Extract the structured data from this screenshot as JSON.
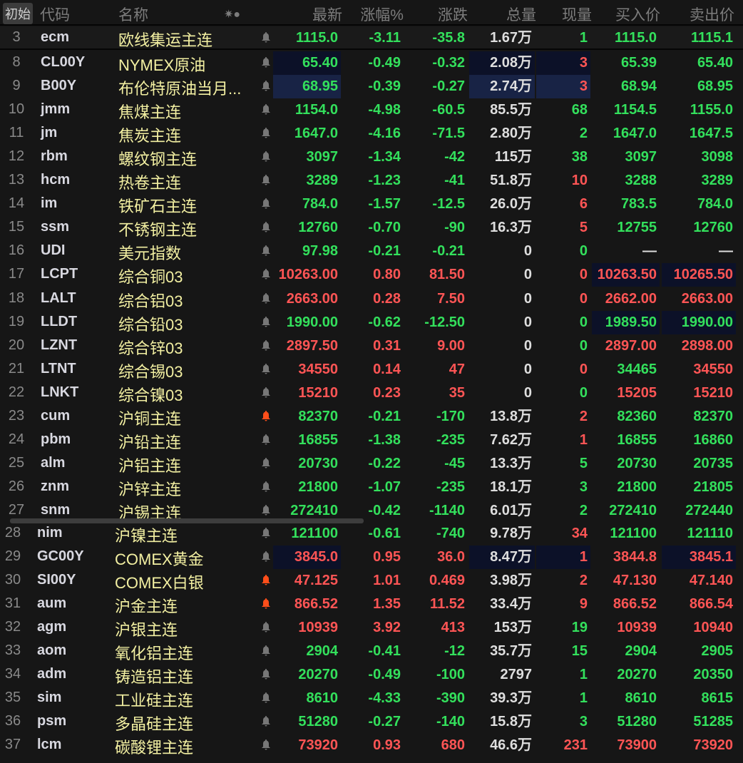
{
  "header": {
    "init_button": "初始",
    "cols": [
      "代码",
      "名称",
      "✷●",
      "最新",
      "涨幅%",
      "涨跌",
      "总量",
      "现量",
      "买入价",
      "卖出价"
    ]
  },
  "colors": {
    "up": "#ff5555",
    "down": "#33e05c",
    "neutral": "#dedede",
    "name": "#f3f0a2",
    "alert_bell": "#ff4e1a"
  },
  "rows": [
    {
      "n": "3",
      "code": "ecm",
      "name": "欧线集运主连",
      "last": "1115.0",
      "pct": "-3.11",
      "chg": "-35.8",
      "vol": "1.67万",
      "cur": "1",
      "bid": "1115.0",
      "ask": "1115.1",
      "c": "gggggg",
      "bell": "gray"
    },
    {
      "n": "8",
      "code": "CL00Y",
      "name": "NYMEX原油",
      "last": "65.40",
      "pct": "-0.49",
      "chg": "-0.32",
      "vol": "2.08万",
      "cur": "3",
      "bid": "65.39",
      "ask": "65.40",
      "c": "gggrgg",
      "bell": "gray",
      "hl": {
        "last": 1,
        "vol": 1
      }
    },
    {
      "n": "9",
      "code": "B00Y",
      "name": "布伦特原油当月...",
      "last": "68.95",
      "pct": "-0.39",
      "chg": "-0.27",
      "vol": "2.74万",
      "cur": "3",
      "bid": "68.94",
      "ask": "68.95",
      "c": "gggrgg",
      "bell": "gray",
      "hl": {
        "last": 2,
        "vol": 2
      }
    },
    {
      "n": "10",
      "code": "jmm",
      "name": "焦煤主连",
      "last": "1154.0",
      "pct": "-4.98",
      "chg": "-60.5",
      "vol": "85.5万",
      "cur": "68",
      "bid": "1154.5",
      "ask": "1155.0",
      "c": "gggggg",
      "bell": "gray"
    },
    {
      "n": "11",
      "code": "jm",
      "name": "焦炭主连",
      "last": "1647.0",
      "pct": "-4.16",
      "chg": "-71.5",
      "vol": "2.80万",
      "cur": "2",
      "bid": "1647.0",
      "ask": "1647.5",
      "c": "gggggg",
      "bell": "gray"
    },
    {
      "n": "12",
      "code": "rbm",
      "name": "螺纹钢主连",
      "last": "3097",
      "pct": "-1.34",
      "chg": "-42",
      "vol": "115万",
      "cur": "38",
      "bid": "3097",
      "ask": "3098",
      "c": "gggggg",
      "bell": "gray"
    },
    {
      "n": "13",
      "code": "hcm",
      "name": "热卷主连",
      "last": "3289",
      "pct": "-1.23",
      "chg": "-41",
      "vol": "51.8万",
      "cur": "10",
      "bid": "3288",
      "ask": "3289",
      "c": "gggrgg",
      "bell": "gray"
    },
    {
      "n": "14",
      "code": "im",
      "name": "铁矿石主连",
      "last": "784.0",
      "pct": "-1.57",
      "chg": "-12.5",
      "vol": "26.0万",
      "cur": "6",
      "bid": "783.5",
      "ask": "784.0",
      "c": "gggrgg",
      "bell": "gray"
    },
    {
      "n": "15",
      "code": "ssm",
      "name": "不锈钢主连",
      "last": "12760",
      "pct": "-0.70",
      "chg": "-90",
      "vol": "16.3万",
      "cur": "5",
      "bid": "12755",
      "ask": "12760",
      "c": "gggrgg",
      "bell": "gray"
    },
    {
      "n": "16",
      "code": "UDI",
      "name": "美元指数",
      "last": "97.98",
      "pct": "-0.21",
      "chg": "-0.21",
      "vol": "0",
      "cur": "0",
      "bid": "—",
      "ask": "—",
      "c": "ggggww",
      "bell": "gray"
    },
    {
      "n": "17",
      "code": "LCPT",
      "name": "综合铜03",
      "last": "10263.00",
      "pct": "0.80",
      "chg": "81.50",
      "vol": "0",
      "cur": "0",
      "bid": "10263.50",
      "ask": "10265.50",
      "c": "rrrrrr",
      "bell": "gray",
      "hl": {
        "bid": 1,
        "ask": 1
      }
    },
    {
      "n": "18",
      "code": "LALT",
      "name": "综合铝03",
      "last": "2663.00",
      "pct": "0.28",
      "chg": "7.50",
      "vol": "0",
      "cur": "0",
      "bid": "2662.00",
      "ask": "2663.00",
      "c": "rrrrrr",
      "bell": "gray"
    },
    {
      "n": "19",
      "code": "LLDT",
      "name": "综合铅03",
      "last": "1990.00",
      "pct": "-0.62",
      "chg": "-12.50",
      "vol": "0",
      "cur": "0",
      "bid": "1989.50",
      "ask": "1990.00",
      "c": "gggggg",
      "bell": "gray",
      "hl": {
        "bid": 1,
        "ask": 1
      }
    },
    {
      "n": "20",
      "code": "LZNT",
      "name": "综合锌03",
      "last": "2897.50",
      "pct": "0.31",
      "chg": "9.00",
      "vol": "0",
      "cur": "0",
      "bid": "2897.00",
      "ask": "2898.00",
      "c": "rrrgrr",
      "bell": "gray"
    },
    {
      "n": "21",
      "code": "LTNT",
      "name": "综合锡03",
      "last": "34550",
      "pct": "0.14",
      "chg": "47",
      "vol": "0",
      "cur": "0",
      "bid": "34465",
      "ask": "34550",
      "c": "rrrrgr",
      "bell": "gray"
    },
    {
      "n": "22",
      "code": "LNKT",
      "name": "综合镍03",
      "last": "15210",
      "pct": "0.23",
      "chg": "35",
      "vol": "0",
      "cur": "0",
      "bid": "15205",
      "ask": "15210",
      "c": "rrrgrr",
      "bell": "gray"
    },
    {
      "n": "23",
      "code": "cum",
      "name": "沪铜主连",
      "last": "82370",
      "pct": "-0.21",
      "chg": "-170",
      "vol": "13.8万",
      "cur": "2",
      "bid": "82360",
      "ask": "82370",
      "c": "gggrgg",
      "bell": "alert"
    },
    {
      "n": "24",
      "code": "pbm",
      "name": "沪铅主连",
      "last": "16855",
      "pct": "-1.38",
      "chg": "-235",
      "vol": "7.62万",
      "cur": "1",
      "bid": "16855",
      "ask": "16860",
      "c": "gggrgg",
      "bell": "gray"
    },
    {
      "n": "25",
      "code": "alm",
      "name": "沪铝主连",
      "last": "20730",
      "pct": "-0.22",
      "chg": "-45",
      "vol": "13.3万",
      "cur": "5",
      "bid": "20730",
      "ask": "20735",
      "c": "gggggg",
      "bell": "gray"
    },
    {
      "n": "26",
      "code": "znm",
      "name": "沪锌主连",
      "last": "21800",
      "pct": "-1.07",
      "chg": "-235",
      "vol": "18.1万",
      "cur": "3",
      "bid": "21800",
      "ask": "21805",
      "c": "gggggg",
      "bell": "gray"
    },
    {
      "n": "27",
      "code": "snm",
      "name": "沪锡主连",
      "last": "272410",
      "pct": "-0.42",
      "chg": "-1140",
      "vol": "6.01万",
      "cur": "2",
      "bid": "272410",
      "ask": "272440",
      "c": "gggggg",
      "bell": "gray"
    },
    {
      "n": "28",
      "code": "nim",
      "name": "沪镍主连",
      "last": "121100",
      "pct": "-0.61",
      "chg": "-740",
      "vol": "9.78万",
      "cur": "34",
      "bid": "121100",
      "ask": "121110",
      "c": "gggrgg",
      "bell": "gray"
    },
    {
      "n": "29",
      "code": "GC00Y",
      "name": "COMEX黄金",
      "last": "3845.0",
      "pct": "0.95",
      "chg": "36.0",
      "vol": "8.47万",
      "cur": "1",
      "bid": "3844.8",
      "ask": "3845.1",
      "c": "rrrrrr",
      "bell": "gray",
      "hl": {
        "last": 1,
        "vol": 1,
        "ask": 1
      }
    },
    {
      "n": "30",
      "code": "SI00Y",
      "name": "COMEX白银",
      "last": "47.125",
      "pct": "1.01",
      "chg": "0.469",
      "vol": "3.98万",
      "cur": "2",
      "bid": "47.130",
      "ask": "47.140",
      "c": "rrrrrr",
      "bell": "alert"
    },
    {
      "n": "31",
      "code": "aum",
      "name": "沪金主连",
      "last": "866.52",
      "pct": "1.35",
      "chg": "11.52",
      "vol": "33.4万",
      "cur": "9",
      "bid": "866.52",
      "ask": "866.54",
      "c": "rrrrrr",
      "bell": "alert"
    },
    {
      "n": "32",
      "code": "agm",
      "name": "沪银主连",
      "last": "10939",
      "pct": "3.92",
      "chg": "413",
      "vol": "153万",
      "cur": "19",
      "bid": "10939",
      "ask": "10940",
      "c": "rrrgrr",
      "bell": "gray"
    },
    {
      "n": "33",
      "code": "aom",
      "name": "氧化铝主连",
      "last": "2904",
      "pct": "-0.41",
      "chg": "-12",
      "vol": "35.7万",
      "cur": "15",
      "bid": "2904",
      "ask": "2905",
      "c": "gggggg",
      "bell": "gray"
    },
    {
      "n": "34",
      "code": "adm",
      "name": "铸造铝主连",
      "last": "20270",
      "pct": "-0.49",
      "chg": "-100",
      "vol": "2797",
      "cur": "1",
      "bid": "20270",
      "ask": "20350",
      "c": "gggggg",
      "bell": "gray"
    },
    {
      "n": "35",
      "code": "sim",
      "name": "工业硅主连",
      "last": "8610",
      "pct": "-4.33",
      "chg": "-390",
      "vol": "39.3万",
      "cur": "1",
      "bid": "8610",
      "ask": "8615",
      "c": "gggggg",
      "bell": "gray"
    },
    {
      "n": "36",
      "code": "psm",
      "name": "多晶硅主连",
      "last": "51280",
      "pct": "-0.27",
      "chg": "-140",
      "vol": "15.8万",
      "cur": "3",
      "bid": "51280",
      "ask": "51285",
      "c": "gggggg",
      "bell": "gray"
    },
    {
      "n": "37",
      "code": "lcm",
      "name": "碳酸锂主连",
      "last": "73920",
      "pct": "0.93",
      "chg": "680",
      "vol": "46.6万",
      "cur": "231",
      "bid": "73900",
      "ask": "73920",
      "c": "rrrrrr",
      "bell": "gray"
    }
  ]
}
